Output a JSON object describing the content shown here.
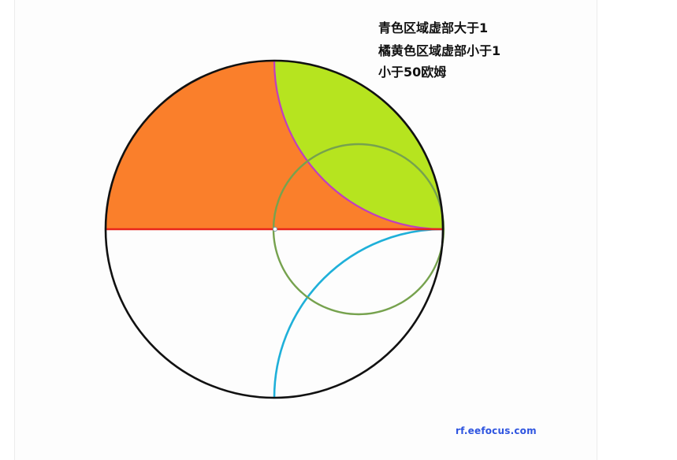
{
  "annotations": {
    "line1": "青色区域虚部大于1",
    "line2": "橘黄色区域虚部小于1",
    "line3": "小于50欧姆"
  },
  "watermark": "rf.eefocus.com",
  "colors": {
    "orange_region": "#fa7f2b",
    "green_region": "#b6e41f",
    "outer_circle": "#111111",
    "real_axis": "#e8251b",
    "r1_circle": "#76a24e",
    "x_plus1_arc": "#c03dc0",
    "x_minus1_arc": "#1fb0d9"
  }
}
